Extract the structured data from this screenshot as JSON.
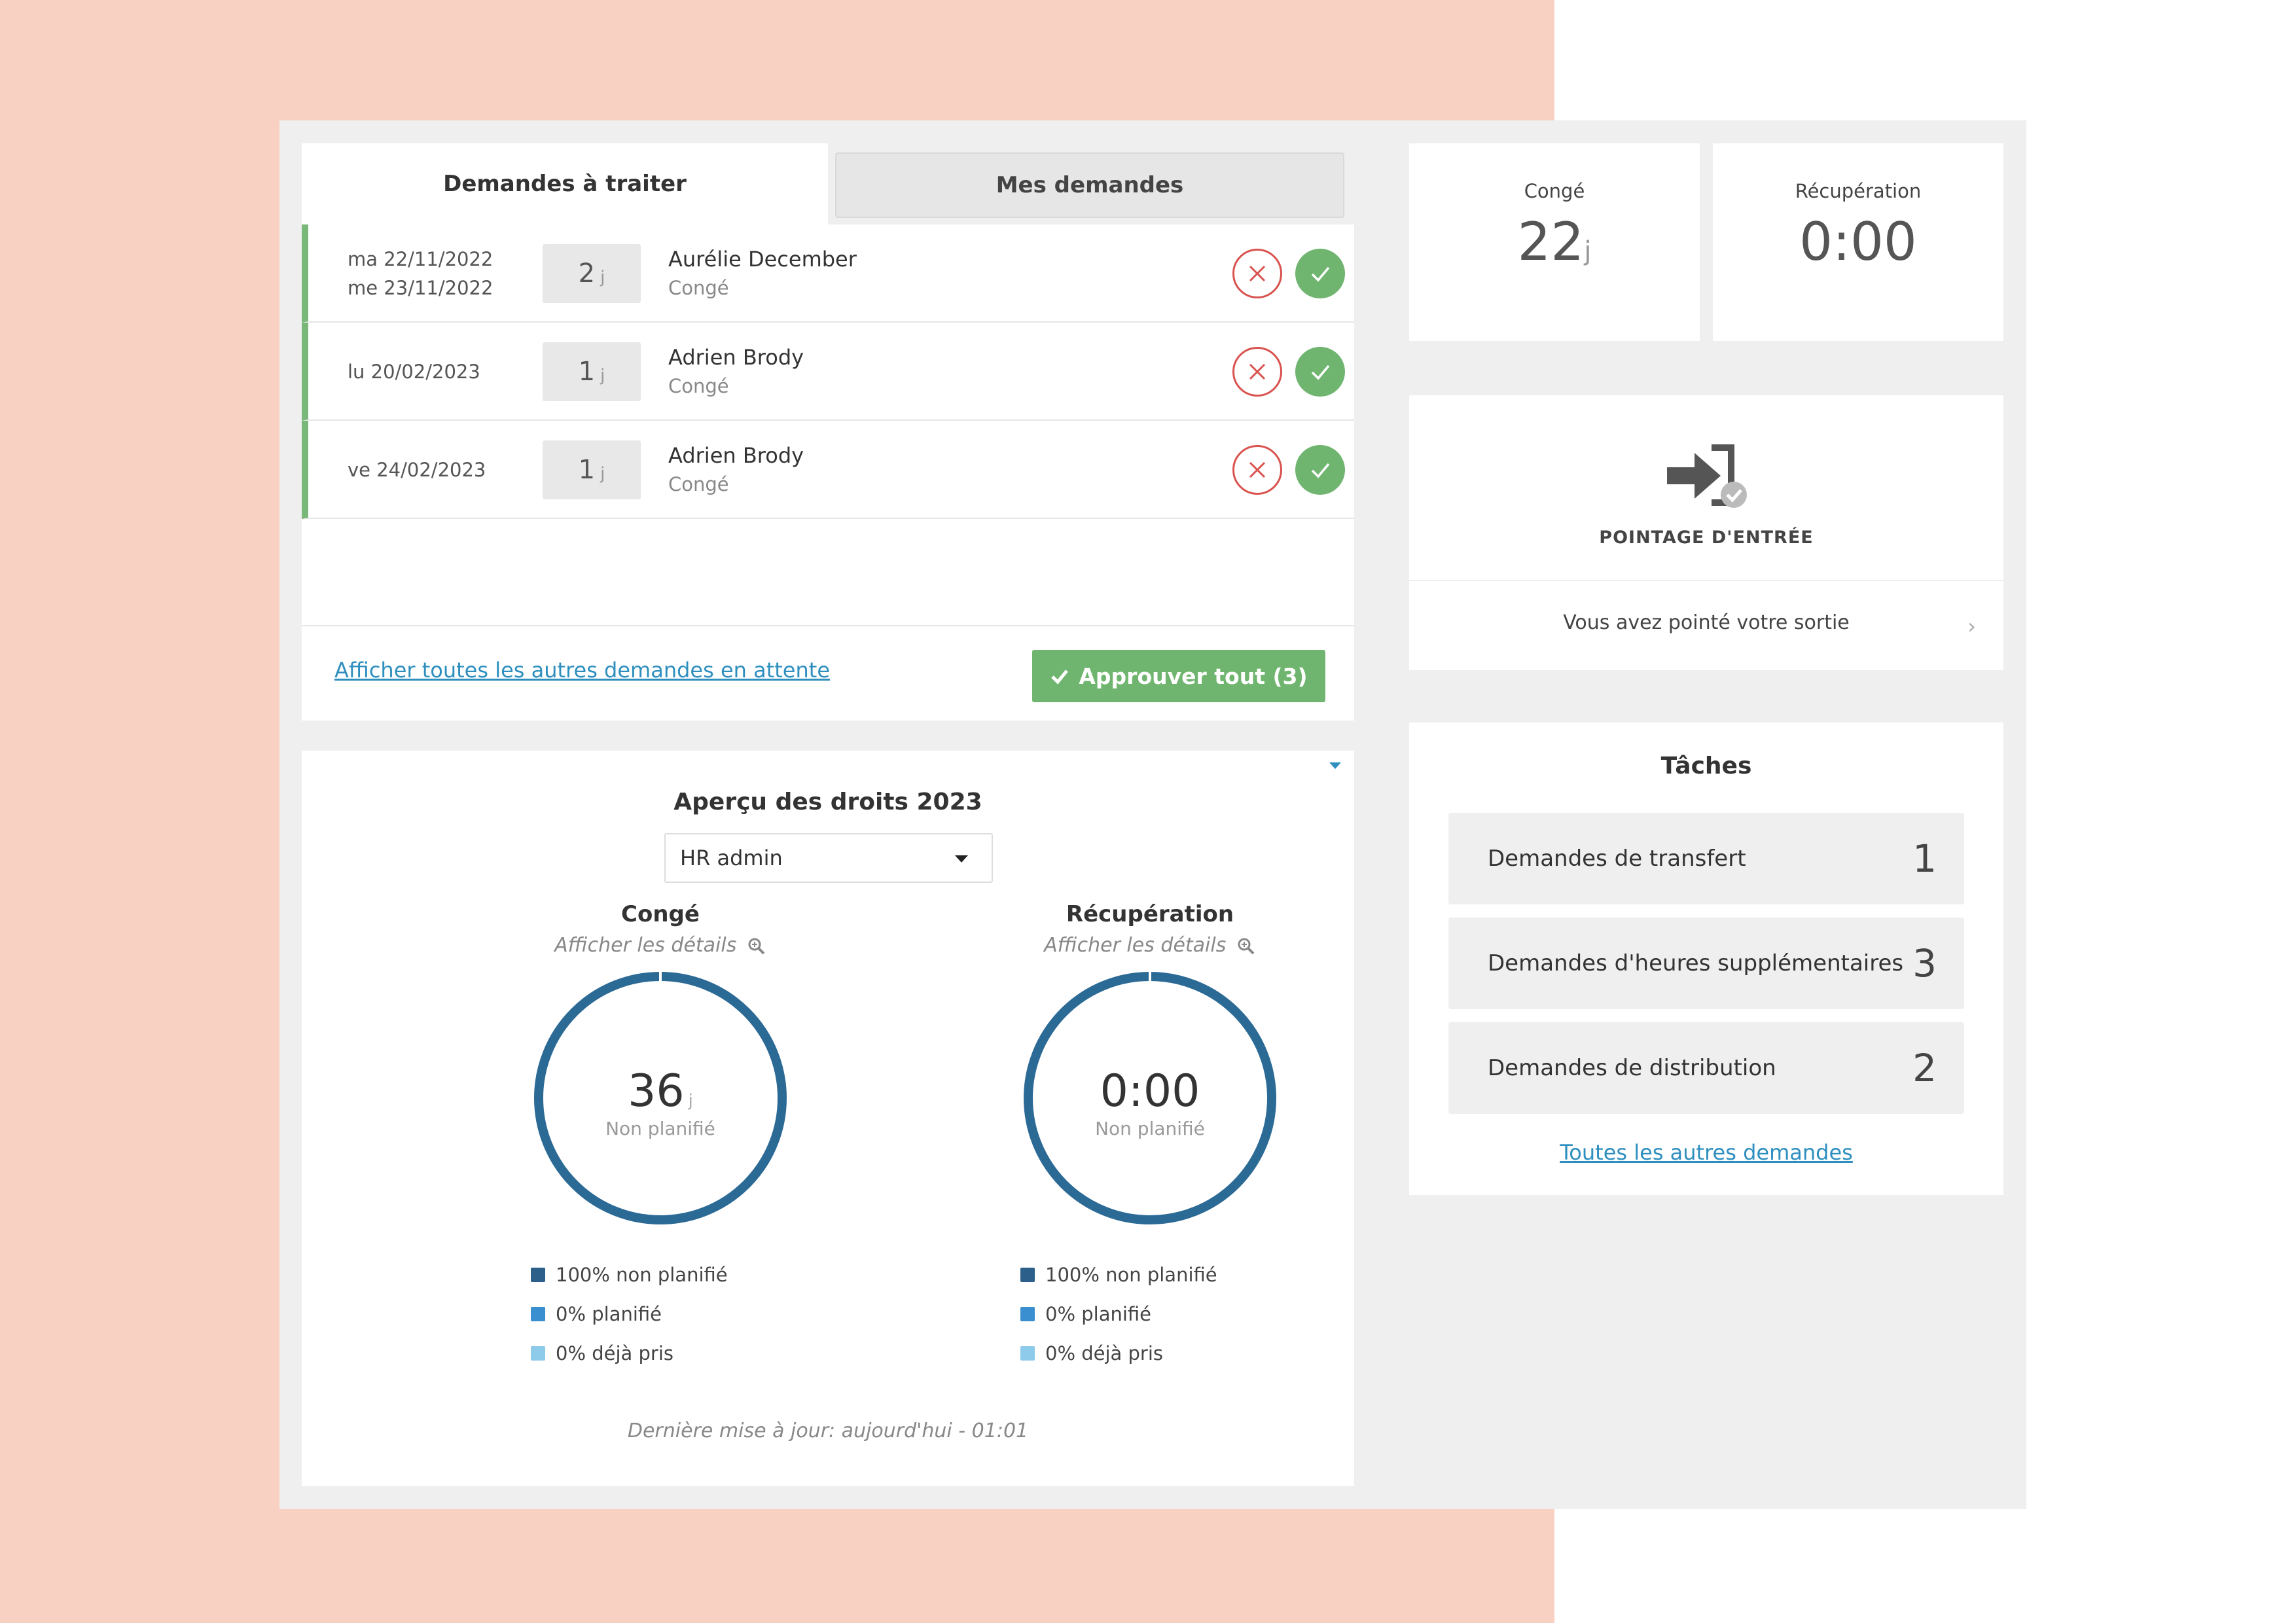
{
  "tabs": {
    "active": "Demandes à traiter",
    "inactive": "Mes demandes"
  },
  "requests": [
    {
      "dates": [
        "ma 22/11/2022",
        "me 23/11/2022"
      ],
      "days": "2",
      "unit": "j",
      "name": "Aurélie December",
      "type": "Congé"
    },
    {
      "dates": [
        "lu 20/02/2023"
      ],
      "days": "1",
      "unit": "j",
      "name": "Adrien Brody",
      "type": "Congé"
    },
    {
      "dates": [
        "ve 24/02/2023"
      ],
      "days": "1",
      "unit": "j",
      "name": "Adrien Brody",
      "type": "Congé"
    }
  ],
  "footer": {
    "link": "Afficher toutes les autres demandes en attente",
    "approve": "Approuver tout (3)"
  },
  "rights": {
    "title": "Aperçu des droits 2023",
    "select_value": "HR admin",
    "gauges": [
      {
        "title": "Congé",
        "details": "Afficher les détails",
        "value": "36",
        "unit": "j",
        "sublabel": "Non planifié",
        "unplanned_fraction": 1.0,
        "legend": [
          "100% non planifié",
          "0% planifié",
          "0% déjà pris"
        ]
      },
      {
        "title": "Récupération",
        "details": "Afficher les détails",
        "value": "0:00",
        "unit": "",
        "sublabel": "Non planifié",
        "unplanned_fraction": 1.0,
        "legend": [
          "100% non planifié",
          "0% planifié",
          "0% déjà pris"
        ]
      }
    ],
    "legend_colors": [
      "#2c5f8a",
      "#3a8fd0",
      "#8ecbea"
    ],
    "last_update": "Dernière mise à jour: aujourd'hui - 01:01"
  },
  "balances": [
    {
      "label": "Congé",
      "value": "22",
      "unit": "j"
    },
    {
      "label": "Récupération",
      "value": "0:00",
      "unit": ""
    }
  ],
  "clock": {
    "title": "POINTAGE D'ENTRÉE",
    "status": "Vous avez pointé votre sortie"
  },
  "tasks": {
    "title": "Tâches",
    "items": [
      {
        "label": "Demandes de transfert",
        "count": "1"
      },
      {
        "label": "Demandes d'heures supplémentaires",
        "count": "3"
      },
      {
        "label": "Demandes de distribution",
        "count": "2"
      }
    ],
    "link": "Toutes les autres demandes"
  },
  "colors": {
    "accent_green": "#6fb56f",
    "reject_red": "#d9534f",
    "link_blue": "#2e8fbf",
    "gauge_blue": "#2c6a96"
  }
}
